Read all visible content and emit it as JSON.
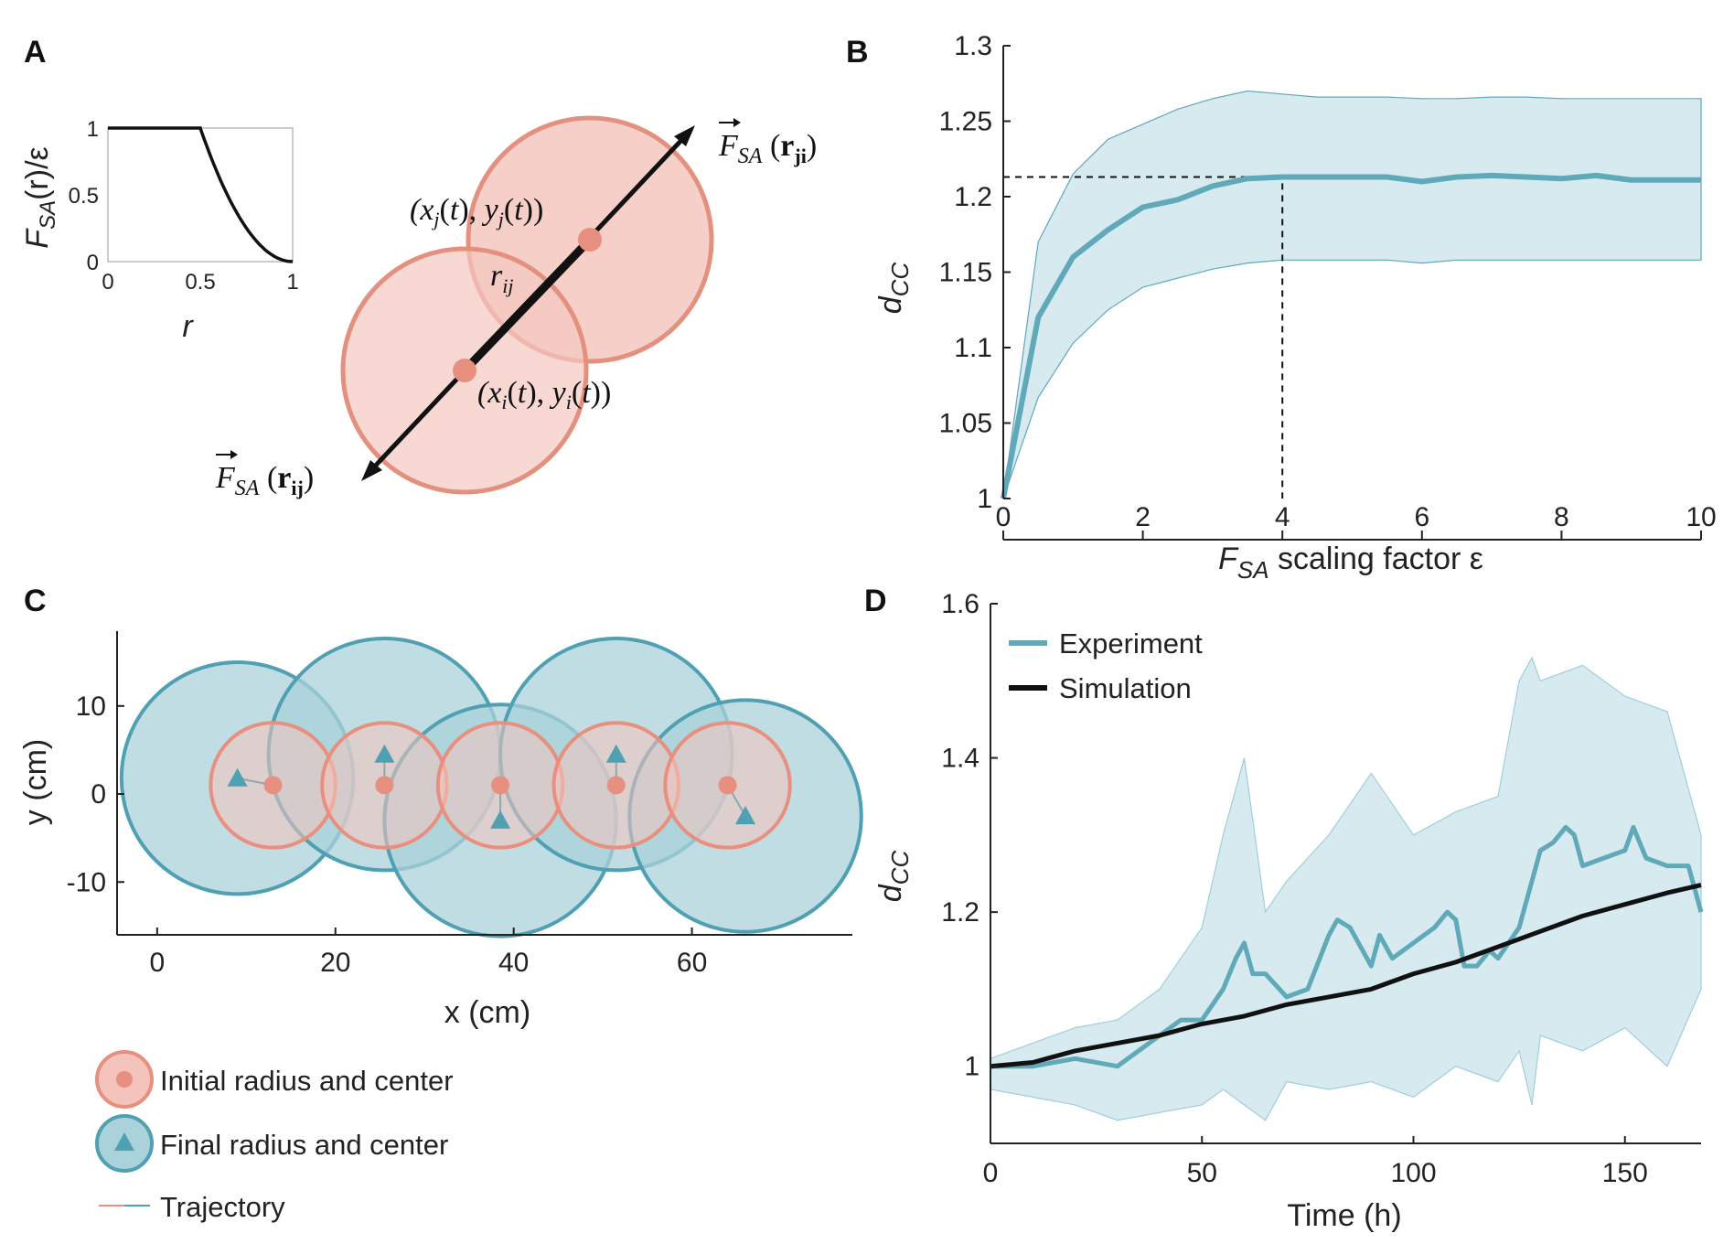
{
  "panels": {
    "A": {
      "letter": "A",
      "inset": {
        "ylabel_main": "F",
        "ylabel_sub": "SA",
        "ylabel_rest": "(r)/ε",
        "xlabel": "r",
        "xticks": [
          "0",
          "0.5",
          "1"
        ],
        "yticks": [
          "0",
          "0.5",
          "1"
        ]
      },
      "labels": {
        "pos_j": "(x_j(t), y_j(t))",
        "pos_i": "(x_i(t), y_i(t))",
        "r_ij": "r_ij",
        "force_ji": "F_SA(r_ji)",
        "force_ij": "F_SA(r_ij)"
      },
      "colors": {
        "pink_fill": "#f4c7c0",
        "pink_stroke": "#e3907f",
        "pink_dot": "#e8907f"
      }
    },
    "B": {
      "letter": "B",
      "ylabel_main": "d",
      "ylabel_sub": "CC",
      "xlabel_main": "F",
      "xlabel_sub": "SA",
      "xlabel_rest": " scaling factor ε",
      "color_line": "#5fa9b8",
      "color_band": "#d7eaf0"
    },
    "C": {
      "letter": "C",
      "xlabel": "x (cm)",
      "ylabel": "y (cm)",
      "xticks": [
        "0",
        "20",
        "40",
        "60"
      ],
      "yticks": [
        "10",
        "0",
        "-10"
      ],
      "legend": {
        "initial": "Initial radius and center",
        "final": "Final radius and center",
        "trajectory": "Trajectory"
      },
      "colors": {
        "teal_fill": "#a9d2da",
        "teal_stroke": "#4fa0b3",
        "pink_fill": "#f4c3bb",
        "pink_stroke": "#e8907f"
      }
    },
    "D": {
      "letter": "D",
      "xlabel": "Time (h)",
      "ylabel_main": "d",
      "ylabel_sub": "CC",
      "legend": {
        "experiment": "Experiment",
        "simulation": "Simulation"
      }
    }
  },
  "chart_data": [
    {
      "panel": "B",
      "type": "line",
      "title": "",
      "xlabel": "F_SA scaling factor ε",
      "ylabel": "d_CC",
      "xlim": [
        0,
        10
      ],
      "ylim": [
        1,
        1.3
      ],
      "xticks": [
        0,
        2,
        4,
        6,
        8,
        10
      ],
      "yticks": [
        1,
        1.05,
        1.1,
        1.15,
        1.2,
        1.25,
        1.3
      ],
      "x": [
        0,
        0.5,
        1,
        1.5,
        2,
        2.5,
        3,
        3.5,
        4,
        4.5,
        5,
        5.5,
        6,
        6.5,
        7,
        7.5,
        8,
        8.5,
        9,
        9.5,
        10
      ],
      "series": [
        {
          "name": "mean",
          "values": [
            1.0,
            1.12,
            1.16,
            1.178,
            1.193,
            1.198,
            1.207,
            1.212,
            1.213,
            1.213,
            1.213,
            1.213,
            1.21,
            1.213,
            1.214,
            1.213,
            1.212,
            1.214,
            1.211,
            1.211,
            1.211
          ]
        },
        {
          "name": "upper",
          "values": [
            1.0,
            1.17,
            1.215,
            1.238,
            1.248,
            1.258,
            1.265,
            1.27,
            1.268,
            1.266,
            1.266,
            1.266,
            1.265,
            1.265,
            1.266,
            1.266,
            1.265,
            1.265,
            1.265,
            1.265,
            1.265
          ]
        },
        {
          "name": "lower",
          "values": [
            1.0,
            1.067,
            1.103,
            1.125,
            1.14,
            1.146,
            1.152,
            1.156,
            1.158,
            1.158,
            1.158,
            1.158,
            1.156,
            1.158,
            1.158,
            1.158,
            1.158,
            1.158,
            1.158,
            1.158,
            1.158
          ]
        }
      ],
      "annotation": {
        "x": 4,
        "y": 1.213,
        "style": "dashed guide lines"
      }
    },
    {
      "panel": "A-inset",
      "type": "line",
      "xlabel": "r",
      "ylabel": "F_SA(r)/ε",
      "xlim": [
        0,
        1
      ],
      "ylim": [
        0,
        1
      ],
      "x": [
        0,
        0.5,
        0.55,
        0.6,
        0.65,
        0.7,
        0.75,
        0.8,
        0.85,
        0.9,
        0.95,
        1
      ],
      "values": [
        1,
        1,
        0.81,
        0.64,
        0.49,
        0.36,
        0.25,
        0.16,
        0.09,
        0.04,
        0.01,
        0
      ]
    },
    {
      "panel": "C",
      "type": "scatter",
      "xlabel": "x (cm)",
      "ylabel": "y (cm)",
      "xlim": [
        -4.5,
        78
      ],
      "ylim": [
        -16,
        18.5
      ],
      "initial_circles": [
        {
          "x": 13,
          "y": 1,
          "r": 7
        },
        {
          "x": 25.5,
          "y": 1,
          "r": 7
        },
        {
          "x": 38.5,
          "y": 1,
          "r": 7
        },
        {
          "x": 51.5,
          "y": 1,
          "r": 7
        },
        {
          "x": 64,
          "y": 1,
          "r": 7
        }
      ],
      "final_circles": [
        {
          "x": 9,
          "y": 1.8,
          "r": 13
        },
        {
          "x": 25.5,
          "y": 4.5,
          "r": 13
        },
        {
          "x": 38.5,
          "y": -3,
          "r": 13
        },
        {
          "x": 51.5,
          "y": 4.5,
          "r": 13
        },
        {
          "x": 66,
          "y": -2.5,
          "r": 13
        }
      ]
    },
    {
      "panel": "D",
      "type": "line",
      "xlabel": "Time (h)",
      "ylabel": "d_CC",
      "xlim": [
        0,
        168
      ],
      "ylim": [
        0.9,
        1.6
      ],
      "xticks": [
        0,
        50,
        100,
        150
      ],
      "yticks": [
        1,
        1.2,
        1.4,
        1.6
      ],
      "series": [
        {
          "name": "Experiment",
          "x": [
            0,
            10,
            20,
            30,
            40,
            45,
            50,
            55,
            58,
            60,
            62,
            65,
            70,
            75,
            80,
            82,
            85,
            90,
            92,
            95,
            100,
            105,
            108,
            110,
            112,
            115,
            118,
            120,
            125,
            128,
            130,
            133,
            136,
            138,
            140,
            145,
            150,
            152,
            155,
            160,
            165,
            168
          ],
          "values": [
            1.0,
            1.0,
            1.01,
            1.0,
            1.04,
            1.06,
            1.06,
            1.1,
            1.14,
            1.16,
            1.12,
            1.12,
            1.09,
            1.1,
            1.17,
            1.19,
            1.18,
            1.13,
            1.17,
            1.14,
            1.16,
            1.18,
            1.2,
            1.19,
            1.13,
            1.13,
            1.15,
            1.14,
            1.18,
            1.24,
            1.28,
            1.29,
            1.31,
            1.3,
            1.26,
            1.27,
            1.28,
            1.31,
            1.27,
            1.26,
            1.26,
            1.2
          ]
        },
        {
          "name": "Simulation",
          "x": [
            0,
            10,
            20,
            30,
            40,
            50,
            60,
            70,
            80,
            90,
            100,
            110,
            120,
            130,
            140,
            150,
            160,
            168
          ],
          "values": [
            1.0,
            1.005,
            1.02,
            1.03,
            1.04,
            1.055,
            1.065,
            1.08,
            1.09,
            1.1,
            1.12,
            1.135,
            1.155,
            1.175,
            1.195,
            1.21,
            1.225,
            1.235
          ]
        },
        {
          "name": "upper",
          "x": [
            0,
            10,
            20,
            30,
            40,
            50,
            55,
            60,
            65,
            70,
            80,
            90,
            100,
            110,
            120,
            125,
            128,
            130,
            140,
            150,
            160,
            168
          ],
          "values": [
            1.01,
            1.03,
            1.05,
            1.06,
            1.1,
            1.18,
            1.3,
            1.4,
            1.2,
            1.24,
            1.3,
            1.38,
            1.3,
            1.33,
            1.35,
            1.5,
            1.53,
            1.5,
            1.52,
            1.48,
            1.46,
            1.3
          ]
        },
        {
          "name": "lower",
          "x": [
            0,
            10,
            20,
            30,
            40,
            50,
            55,
            60,
            65,
            70,
            80,
            90,
            100,
            110,
            120,
            125,
            128,
            130,
            140,
            150,
            160,
            168
          ],
          "values": [
            0.97,
            0.96,
            0.95,
            0.93,
            0.94,
            0.95,
            0.97,
            0.95,
            0.93,
            0.98,
            0.97,
            0.98,
            0.96,
            1.0,
            0.98,
            1.02,
            0.95,
            1.04,
            1.02,
            1.05,
            1.0,
            1.1
          ]
        }
      ]
    }
  ]
}
